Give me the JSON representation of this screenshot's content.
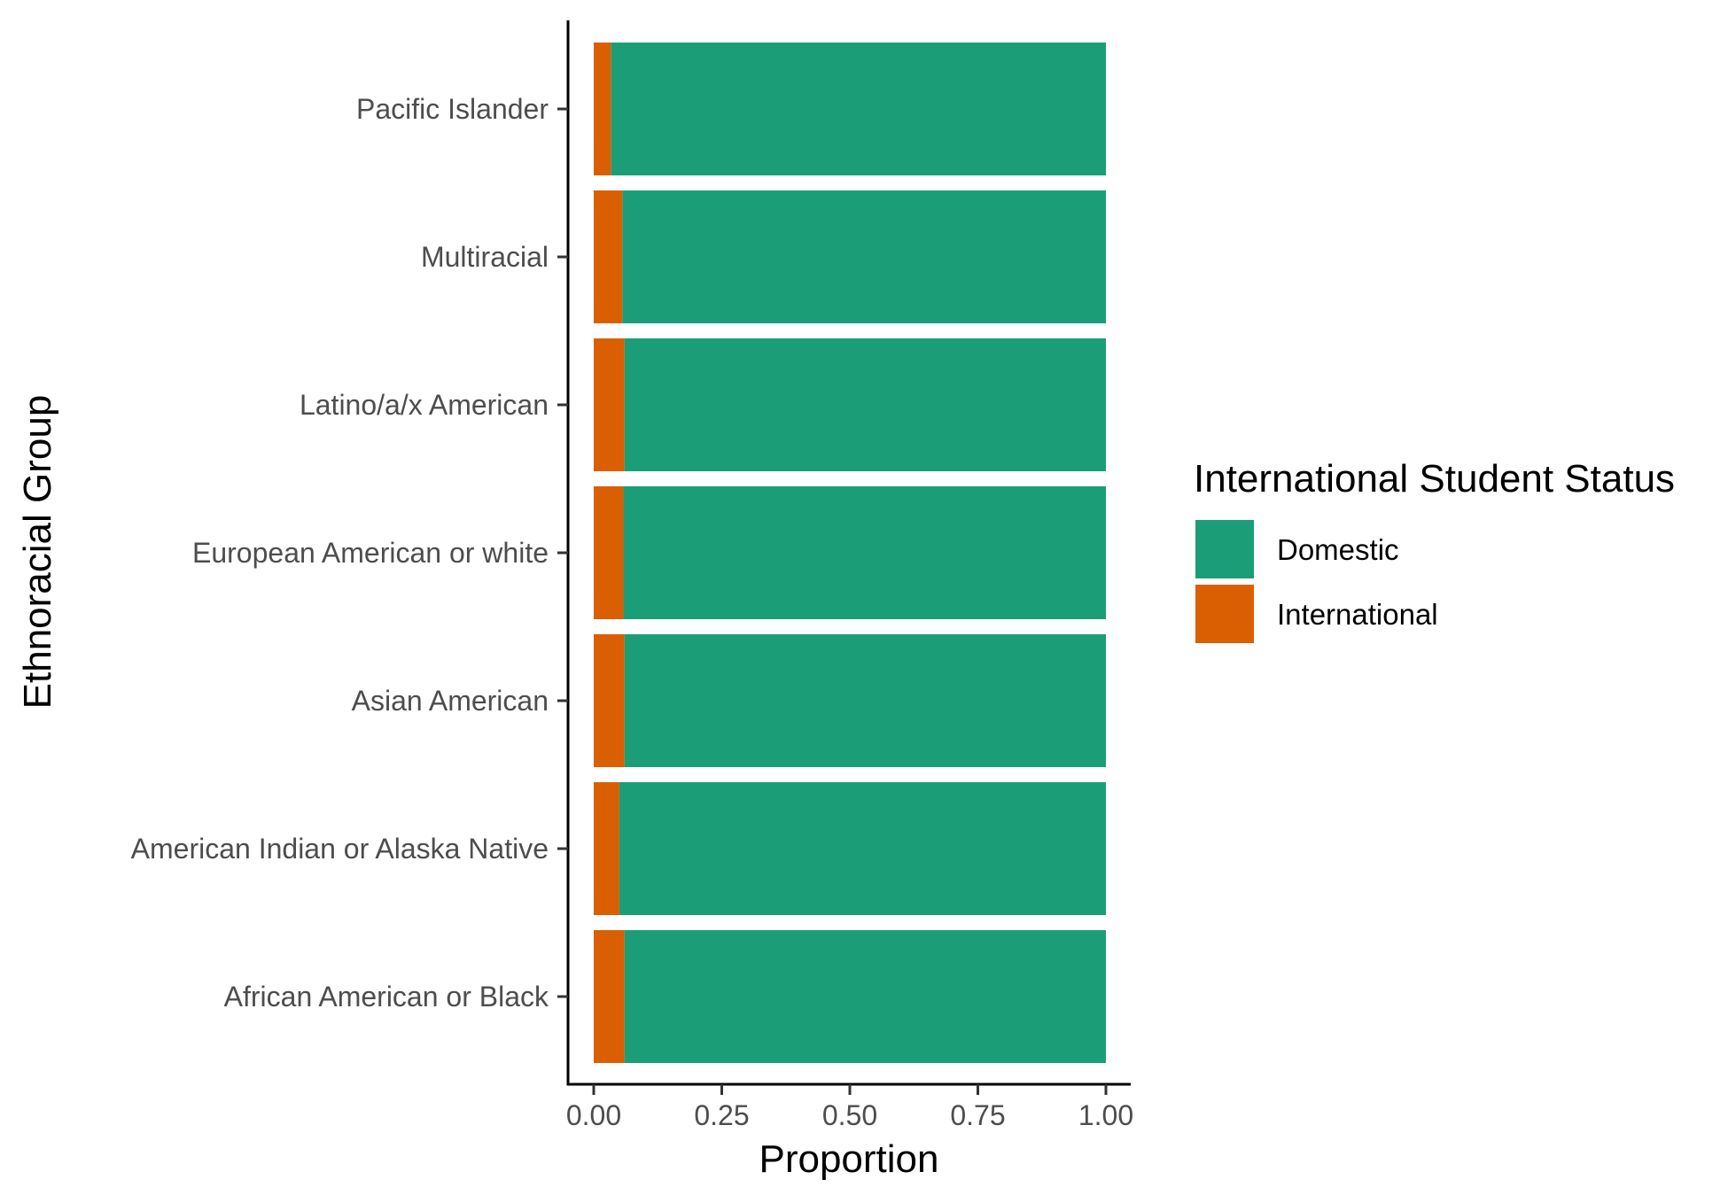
{
  "chart_data": {
    "type": "bar",
    "orientation": "horizontal",
    "stacked": true,
    "xlabel": "Proportion",
    "ylabel": "Ethnoracial Group",
    "xlim": [
      0,
      1
    ],
    "xticks": [
      "0.00",
      "0.25",
      "0.50",
      "0.75",
      "1.00"
    ],
    "xtick_values": [
      0,
      0.25,
      0.5,
      0.75,
      1.0
    ],
    "categories": [
      "African American or Black",
      "American Indian or Alaska Native",
      "Asian American",
      "European American or white",
      "Latino/a/x American",
      "Multiracial",
      "Pacific Islander"
    ],
    "series": [
      {
        "name": "International",
        "color": "#D95F02",
        "values": [
          0.06,
          0.05,
          0.06,
          0.058,
          0.06,
          0.056,
          0.034
        ]
      },
      {
        "name": "Domestic",
        "color": "#1B9E77",
        "values": [
          0.94,
          0.95,
          0.94,
          0.942,
          0.94,
          0.944,
          0.966
        ]
      }
    ],
    "legend": {
      "title": "International Student Status",
      "position": "right",
      "entries": [
        {
          "label": "Domestic",
          "color": "#1B9E77"
        },
        {
          "label": "International",
          "color": "#D95F02"
        }
      ]
    },
    "grid": false
  }
}
